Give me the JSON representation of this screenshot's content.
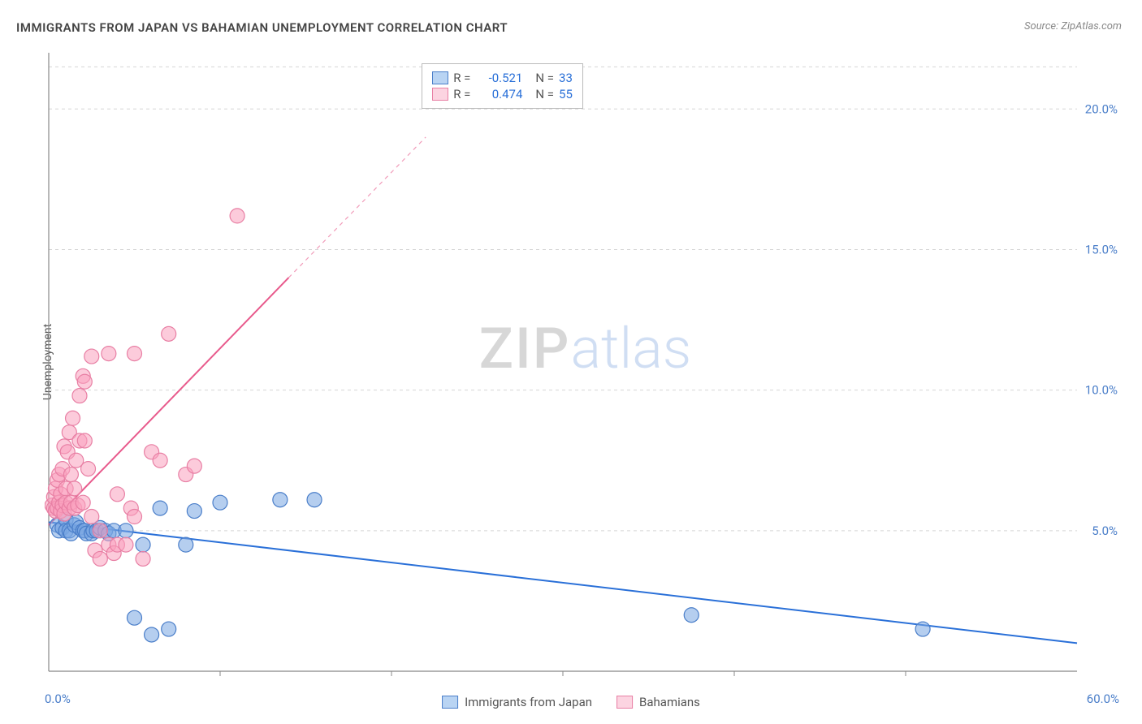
{
  "title": "IMMIGRANTS FROM JAPAN VS BAHAMIAN UNEMPLOYMENT CORRELATION CHART",
  "source": "Source: ZipAtlas.com",
  "ylabel": "Unemployment",
  "watermark_a": "ZIP",
  "watermark_b": "atlas",
  "chart": {
    "type": "scatter",
    "xlim": [
      0,
      60
    ],
    "ylim": [
      0,
      22
    ],
    "x_tick_labels": [
      "0.0%",
      "60.0%"
    ],
    "y_tick_labels": [
      "5.0%",
      "10.0%",
      "15.0%",
      "20.0%"
    ],
    "y_tick_values": [
      5,
      10,
      15,
      20
    ],
    "grid_color": "#d5d5d5",
    "axis_color": "#888888",
    "axis_label_color": "#4a7ec9",
    "background_color": "#ffffff",
    "marker_radius": 9,
    "marker_stroke_width": 1.2,
    "line_width": 2
  },
  "series": [
    {
      "name": "Immigrants from Japan",
      "fill": "rgba(120,165,225,0.55)",
      "stroke": "#4a7ec9",
      "line_color": "#2a70d8",
      "swatch_fill": "#b9d4f3",
      "swatch_border": "#4a7ec9",
      "trend": {
        "x1": 0,
        "y1": 5.3,
        "x2": 60,
        "y2": 1.0
      },
      "stats": {
        "R": "-0.521",
        "N": "33"
      },
      "points": [
        [
          0.5,
          5.2
        ],
        [
          0.6,
          5.0
        ],
        [
          0.8,
          5.1
        ],
        [
          1.0,
          5.4
        ],
        [
          1.0,
          5.0
        ],
        [
          1.2,
          5.0
        ],
        [
          1.3,
          4.9
        ],
        [
          1.5,
          5.2
        ],
        [
          1.6,
          5.3
        ],
        [
          1.8,
          5.1
        ],
        [
          2.0,
          5.0
        ],
        [
          2.1,
          5.0
        ],
        [
          2.2,
          4.9
        ],
        [
          2.5,
          4.9
        ],
        [
          2.6,
          5.0
        ],
        [
          2.8,
          5.0
        ],
        [
          3.0,
          5.1
        ],
        [
          3.3,
          5.0
        ],
        [
          3.5,
          4.9
        ],
        [
          3.8,
          5.0
        ],
        [
          4.5,
          5.0
        ],
        [
          5.0,
          1.9
        ],
        [
          5.5,
          4.5
        ],
        [
          6.0,
          1.3
        ],
        [
          6.5,
          5.8
        ],
        [
          7.0,
          1.5
        ],
        [
          8.0,
          4.5
        ],
        [
          8.5,
          5.7
        ],
        [
          10.0,
          6.0
        ],
        [
          13.5,
          6.1
        ],
        [
          15.5,
          6.1
        ],
        [
          37.5,
          2.0
        ],
        [
          51.0,
          1.5
        ]
      ]
    },
    {
      "name": "Bahamians",
      "fill": "rgba(250,160,190,0.55)",
      "stroke": "#e87fa4",
      "line_color": "#e85a8c",
      "swatch_fill": "#fcd4e1",
      "swatch_border": "#e87fa4",
      "trend": {
        "x1": 0,
        "y1": 5.2,
        "x2": 14,
        "y2": 14.0,
        "dash_to_x": 22,
        "dash_to_y": 19.0
      },
      "stats": {
        "R": "0.474",
        "N": "55"
      },
      "points": [
        [
          0.2,
          5.9
        ],
        [
          0.3,
          5.8
        ],
        [
          0.3,
          6.2
        ],
        [
          0.4,
          6.5
        ],
        [
          0.4,
          5.7
        ],
        [
          0.5,
          6.8
        ],
        [
          0.5,
          5.8
        ],
        [
          0.6,
          6.0
        ],
        [
          0.6,
          7.0
        ],
        [
          0.7,
          5.7
        ],
        [
          0.7,
          6.3
        ],
        [
          0.8,
          7.2
        ],
        [
          0.8,
          5.9
        ],
        [
          0.9,
          8.0
        ],
        [
          0.9,
          5.6
        ],
        [
          1.0,
          6.0
        ],
        [
          1.0,
          6.5
        ],
        [
          1.1,
          7.8
        ],
        [
          1.2,
          5.8
        ],
        [
          1.2,
          8.5
        ],
        [
          1.3,
          6.0
        ],
        [
          1.3,
          7.0
        ],
        [
          1.4,
          9.0
        ],
        [
          1.5,
          5.8
        ],
        [
          1.5,
          6.5
        ],
        [
          1.6,
          7.5
        ],
        [
          1.7,
          5.9
        ],
        [
          1.8,
          8.2
        ],
        [
          1.8,
          9.8
        ],
        [
          2.0,
          6.0
        ],
        [
          2.0,
          10.5
        ],
        [
          2.1,
          10.3
        ],
        [
          2.1,
          8.2
        ],
        [
          2.3,
          7.2
        ],
        [
          2.5,
          5.5
        ],
        [
          2.5,
          11.2
        ],
        [
          2.7,
          4.3
        ],
        [
          3.0,
          5.0
        ],
        [
          3.0,
          4.0
        ],
        [
          3.5,
          4.5
        ],
        [
          3.5,
          11.3
        ],
        [
          3.8,
          4.2
        ],
        [
          4.0,
          4.5
        ],
        [
          4.0,
          6.3
        ],
        [
          4.5,
          4.5
        ],
        [
          4.8,
          5.8
        ],
        [
          5.0,
          11.3
        ],
        [
          5.5,
          4.0
        ],
        [
          6.0,
          7.8
        ],
        [
          6.5,
          7.5
        ],
        [
          7.0,
          12.0
        ],
        [
          8.0,
          7.0
        ],
        [
          8.5,
          7.3
        ],
        [
          11.0,
          16.2
        ],
        [
          5.0,
          5.5
        ]
      ]
    }
  ],
  "stats_box": {
    "R_label": "R =",
    "N_label": "N =",
    "value_color": "#2a70d8"
  },
  "legend_position": "bottom-center"
}
